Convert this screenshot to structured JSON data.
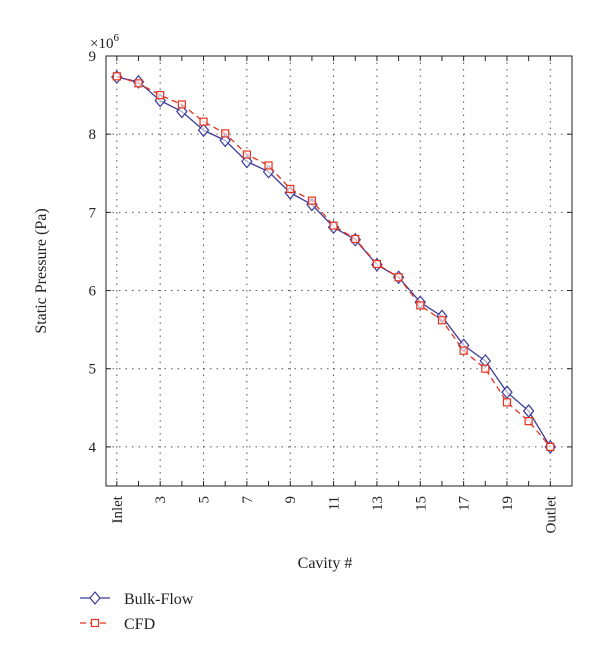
{
  "chart_data": {
    "type": "line",
    "xlabel": "Cavity #",
    "ylabel": "Static Pressure (Pa)",
    "y_multiplier_label": "×10",
    "y_multiplier_exp": "6",
    "x": [
      1,
      2,
      3,
      4,
      5,
      6,
      7,
      8,
      9,
      10,
      11,
      12,
      13,
      14,
      15,
      16,
      17,
      18,
      19,
      20,
      21
    ],
    "x_ticks": [
      {
        "x": 1,
        "label": "Inlet"
      },
      {
        "x": 3,
        "label": "3"
      },
      {
        "x": 5,
        "label": "5"
      },
      {
        "x": 7,
        "label": "7"
      },
      {
        "x": 9,
        "label": "9"
      },
      {
        "x": 11,
        "label": "11"
      },
      {
        "x": 13,
        "label": "13"
      },
      {
        "x": 15,
        "label": "15"
      },
      {
        "x": 17,
        "label": "17"
      },
      {
        "x": 19,
        "label": "19"
      },
      {
        "x": 21,
        "label": "Outlet"
      }
    ],
    "xlim": [
      0.5,
      22
    ],
    "ylim": [
      3.5,
      9
    ],
    "y_ticks": [
      4,
      5,
      6,
      7,
      8,
      9
    ],
    "grid": true,
    "legend_position": "below-left",
    "series": [
      {
        "name": "Bulk-Flow",
        "color": "#3a3a9a",
        "line_style": "solid",
        "marker": "diamond",
        "values": [
          8.73,
          8.67,
          8.43,
          8.29,
          8.05,
          7.92,
          7.65,
          7.52,
          7.25,
          7.1,
          6.81,
          6.65,
          6.33,
          6.17,
          5.85,
          5.67,
          5.3,
          5.1,
          4.7,
          4.46,
          4.0
        ]
      },
      {
        "name": "CFD",
        "color": "#e8321e",
        "line_style": "dashed",
        "marker": "square",
        "values": [
          8.74,
          8.65,
          8.5,
          8.38,
          8.16,
          8.01,
          7.74,
          7.6,
          7.3,
          7.15,
          6.83,
          6.66,
          6.34,
          6.17,
          5.81,
          5.62,
          5.23,
          5.0,
          4.57,
          4.33,
          4.0
        ]
      }
    ]
  }
}
